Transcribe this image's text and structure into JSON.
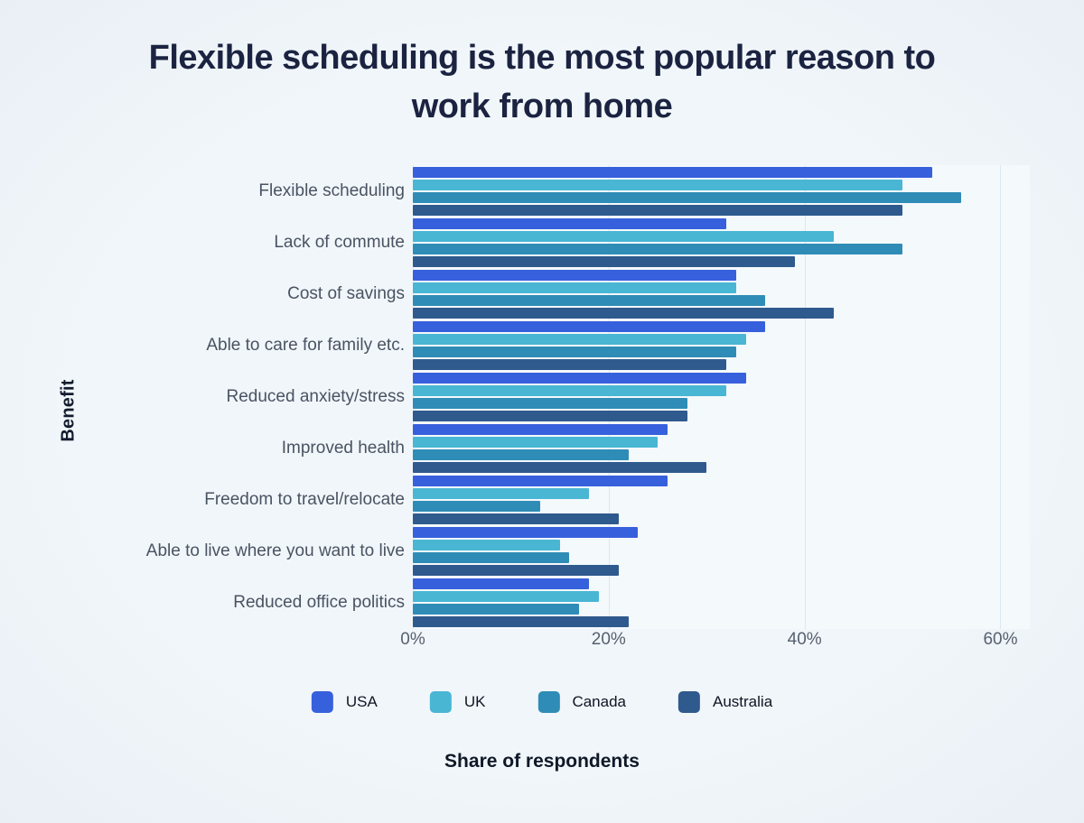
{
  "title": {
    "text": "Flexible scheduling is the most popular reason to work from home"
  },
  "chart_data": {
    "type": "bar",
    "orientation": "horizontal",
    "title": "Flexible scheduling is the most popular reason to work from home",
    "xlabel": "Share of respondents",
    "ylabel": "Benefit",
    "xlim": [
      0,
      63
    ],
    "x_ticks": [
      {
        "label": "0%",
        "value": 0
      },
      {
        "label": "20%",
        "value": 20
      },
      {
        "label": "40%",
        "value": 40
      },
      {
        "label": "60%",
        "value": 60
      }
    ],
    "grid": "vertical",
    "legend_position": "bottom",
    "plot_background": "#f4f9fc",
    "gridline_color": "#dde7ef",
    "categories": [
      "Flexible scheduling",
      "Lack of commute",
      "Cost of savings",
      "Able to care for family etc.",
      "Reduced anxiety/stress",
      "Improved health",
      "Freedom to travel/relocate",
      "Able to live where you want to live",
      "Reduced office politics"
    ],
    "series": [
      {
        "name": "USA",
        "color": "#3760dc",
        "values": [
          53,
          32,
          33,
          36,
          34,
          26,
          26,
          23,
          18
        ]
      },
      {
        "name": "UK",
        "color": "#49b6d4",
        "values": [
          50,
          43,
          33,
          34,
          32,
          25,
          18,
          15,
          19
        ]
      },
      {
        "name": "Canada",
        "color": "#2f8cb6",
        "values": [
          56,
          50,
          36,
          33,
          28,
          22,
          13,
          16,
          17
        ]
      },
      {
        "name": "Australia",
        "color": "#2f5a8d",
        "values": [
          50,
          39,
          43,
          32,
          28,
          30,
          21,
          21,
          22
        ]
      }
    ]
  }
}
